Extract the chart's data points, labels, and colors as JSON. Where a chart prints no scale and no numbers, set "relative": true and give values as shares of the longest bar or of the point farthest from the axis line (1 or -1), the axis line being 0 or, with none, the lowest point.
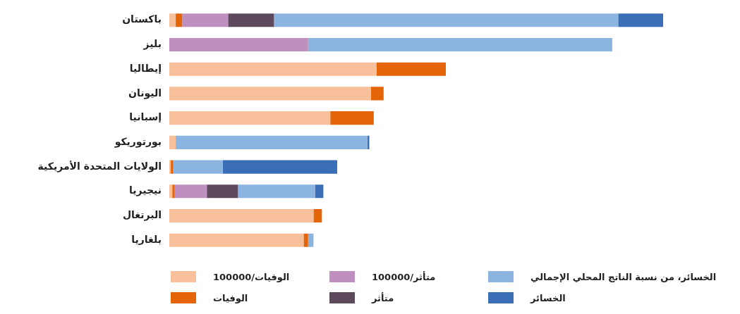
{
  "chart_data": {
    "type": "bar",
    "orientation": "horizontal",
    "stacked": true,
    "relative": true,
    "legend": "bottom",
    "categories": [
      "باكستان",
      "بليز",
      "إيطاليا",
      "اليونان",
      "إسبانيا",
      "بورتوريكو",
      "الولايات المتحدة الأمريكية",
      "نيجيريا",
      "البرتغال",
      "بلغاريا"
    ],
    "series": [
      {
        "name": "الوفيات/100000",
        "color": "#f8c09a",
        "values": [
          0.013,
          null,
          0.42,
          0.408,
          0.326,
          0.013,
          0.003,
          0.006,
          0.292,
          0.272
        ]
      },
      {
        "name": "الوفيات",
        "color": "#e46508",
        "values": [
          0.013,
          null,
          0.14,
          0.026,
          0.088,
          null,
          0.005,
          0.005,
          0.017,
          0.009
        ]
      },
      {
        "name": "متأثر/100000",
        "color": "#bf8fc0",
        "values": [
          0.093,
          0.281,
          null,
          null,
          null,
          null,
          null,
          0.065,
          null,
          null
        ]
      },
      {
        "name": "متأثر",
        "color": "#5c4a5c",
        "values": [
          0.093,
          null,
          null,
          null,
          null,
          null,
          null,
          0.063,
          null,
          null
        ]
      },
      {
        "name": "الخسائر، من نسبة الناتج المحلي الإجمالي",
        "color": "#8cb4e0",
        "values": [
          0.697,
          0.616,
          null,
          null,
          null,
          0.388,
          0.1,
          0.156,
          null,
          0.011
        ]
      },
      {
        "name": "الخسائر",
        "color": "#3a6eb6",
        "values": [
          0.091,
          null,
          null,
          null,
          null,
          0.004,
          0.232,
          0.017,
          null,
          null
        ]
      }
    ]
  }
}
